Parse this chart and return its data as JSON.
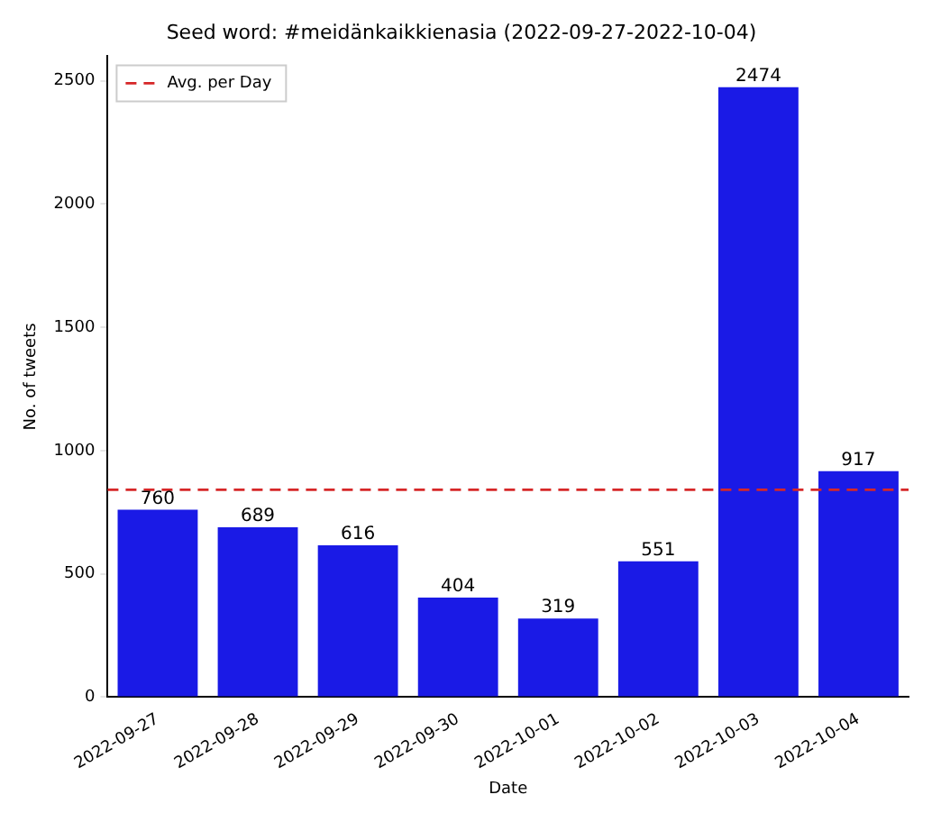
{
  "chart_data": {
    "type": "bar",
    "title": "Seed word: #meidänkaikkienasia (2022-09-27-2022-10-04)",
    "xlabel": "Date",
    "ylabel": "No. of tweets",
    "categories": [
      "2022-09-27",
      "2022-09-28",
      "2022-09-29",
      "2022-09-30",
      "2022-10-01",
      "2022-10-02",
      "2022-10-03",
      "2022-10-04"
    ],
    "values": [
      760,
      689,
      616,
      404,
      319,
      551,
      2474,
      917
    ],
    "color": "#1a1ae6",
    "ylim": [
      0,
      2600
    ],
    "yticks": [
      0,
      500,
      1000,
      1500,
      2000,
      2500
    ],
    "grid": false,
    "data_labels": true,
    "legend": "top left",
    "ref_lines": [
      {
        "axis": "y",
        "value": 841,
        "label": "Avg. per Day",
        "color": "#d62728",
        "line_style": "dashed"
      }
    ]
  }
}
